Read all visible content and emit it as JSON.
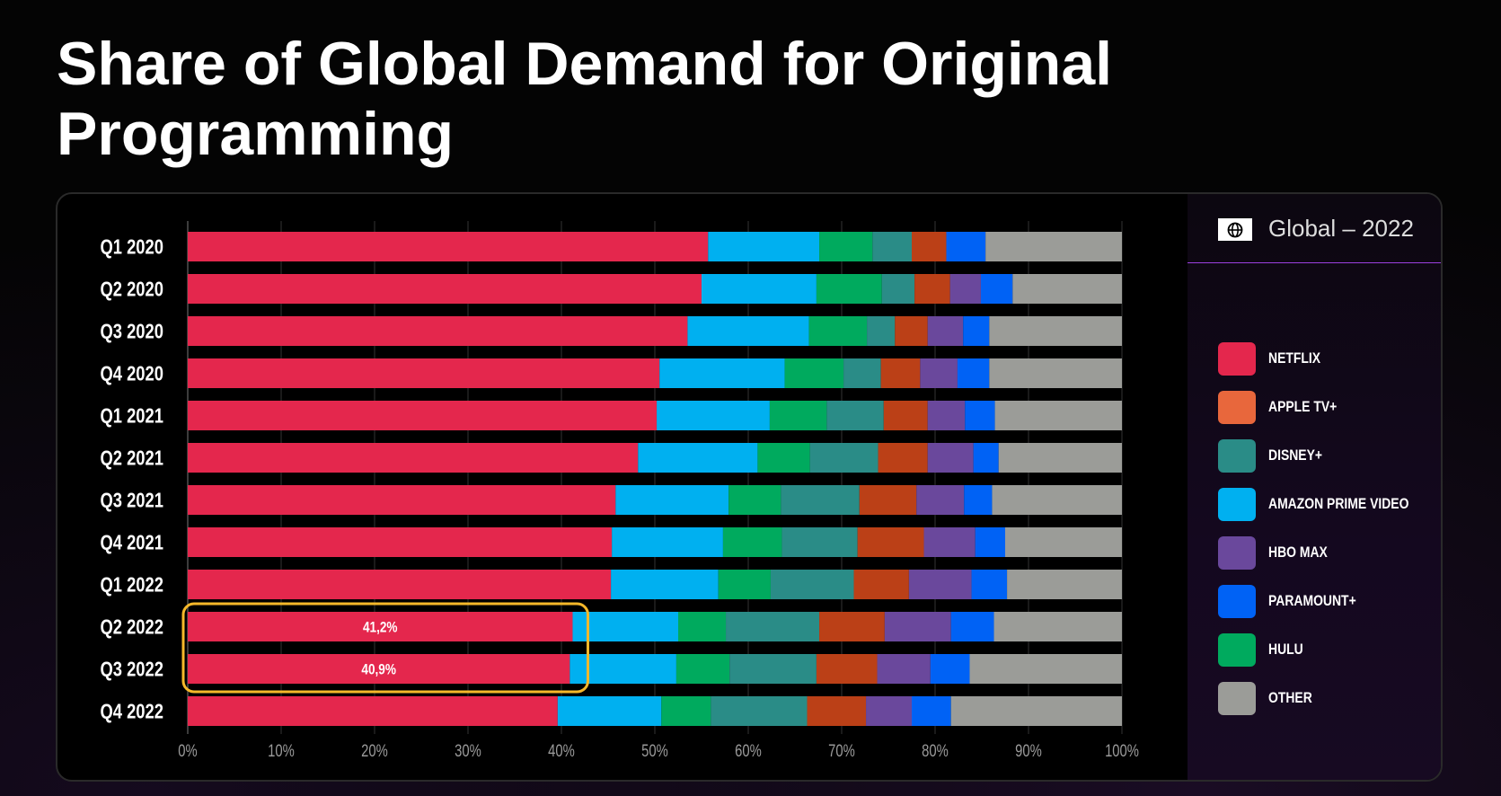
{
  "title": "Share of Global Demand for Original Programming",
  "legend": {
    "header": "Global – 2022",
    "header_icon": "globe-icon",
    "items": [
      {
        "label": "NETFLIX",
        "color": "#e4274d"
      },
      {
        "label": "APPLE TV+",
        "color": "#e8673c"
      },
      {
        "label": "DISNEY+",
        "color": "#2a8c87"
      },
      {
        "label": "AMAZON PRIME VIDEO",
        "color": "#00b0f0"
      },
      {
        "label": "HBO MAX",
        "color": "#6a489c"
      },
      {
        "label": "PARAMOUNT+",
        "color": "#0062f5"
      },
      {
        "label": "HULU",
        "color": "#00aa5e"
      },
      {
        "label": "OTHER",
        "color": "#9b9c98"
      }
    ]
  },
  "highlight_color": "#f5b82a",
  "chart_data": {
    "type": "bar",
    "orientation": "horizontal",
    "stacked": "100%",
    "categories": [
      "Q1 2020",
      "Q2 2020",
      "Q3 2020",
      "Q4 2020",
      "Q1 2021",
      "Q2 2021",
      "Q3 2021",
      "Q4 2021",
      "Q1 2022",
      "Q2 2022",
      "Q3 2022",
      "Q4 2022"
    ],
    "xlim": [
      0,
      100
    ],
    "xticks": [
      "0%",
      "10%",
      "20%",
      "30%",
      "40%",
      "50%",
      "60%",
      "70%",
      "80%",
      "90%",
      "100%"
    ],
    "grid": true,
    "legend_position": "right",
    "series": [
      {
        "name": "NETFLIX",
        "color": "#e4274d",
        "values": [
          55.7,
          55.0,
          53.5,
          50.5,
          50.2,
          48.2,
          45.8,
          45.4,
          45.3,
          41.2,
          40.9,
          39.6
        ]
      },
      {
        "name": "AMAZON PRIME VIDEO",
        "color": "#00b0f0",
        "values": [
          11.9,
          12.3,
          13.0,
          13.4,
          12.1,
          12.8,
          12.1,
          11.9,
          11.5,
          11.3,
          11.4,
          11.1
        ]
      },
      {
        "name": "HULU",
        "color": "#00aa5e",
        "values": [
          5.7,
          7.0,
          6.2,
          6.3,
          6.1,
          5.6,
          5.6,
          6.3,
          5.6,
          5.1,
          5.7,
          5.3
        ]
      },
      {
        "name": "DISNEY+",
        "color": "#2a8c87",
        "values": [
          4.2,
          3.5,
          3.0,
          4.0,
          6.1,
          7.3,
          8.4,
          8.1,
          8.9,
          10.0,
          9.3,
          10.3
        ]
      },
      {
        "name": "APPLE TV+",
        "color": "#bb4017",
        "values": [
          3.7,
          3.8,
          3.5,
          4.2,
          4.7,
          5.3,
          6.1,
          7.1,
          5.9,
          7.0,
          6.5,
          6.3
        ]
      },
      {
        "name": "HBO MAX",
        "color": "#6a489c",
        "values": [
          0,
          3.3,
          3.8,
          4.0,
          4.0,
          4.9,
          5.1,
          5.5,
          6.7,
          7.1,
          5.7,
          4.9
        ]
      },
      {
        "name": "PARAMOUNT+",
        "color": "#0062f5",
        "values": [
          4.2,
          3.4,
          2.8,
          3.4,
          3.2,
          2.7,
          3.0,
          3.2,
          3.8,
          4.6,
          4.2,
          4.2
        ]
      },
      {
        "name": "OTHER",
        "color": "#9b9c98",
        "values": [
          14.6,
          11.7,
          14.2,
          14.2,
          13.6,
          13.2,
          13.9,
          12.5,
          12.3,
          13.7,
          16.3,
          18.3
        ]
      }
    ],
    "data_labels": [
      {
        "category": "Q2 2022",
        "series": "NETFLIX",
        "text": "41,2%"
      },
      {
        "category": "Q3 2022",
        "series": "NETFLIX",
        "text": "40,9%"
      }
    ],
    "highlighted_categories": [
      "Q2 2022",
      "Q3 2022"
    ]
  }
}
